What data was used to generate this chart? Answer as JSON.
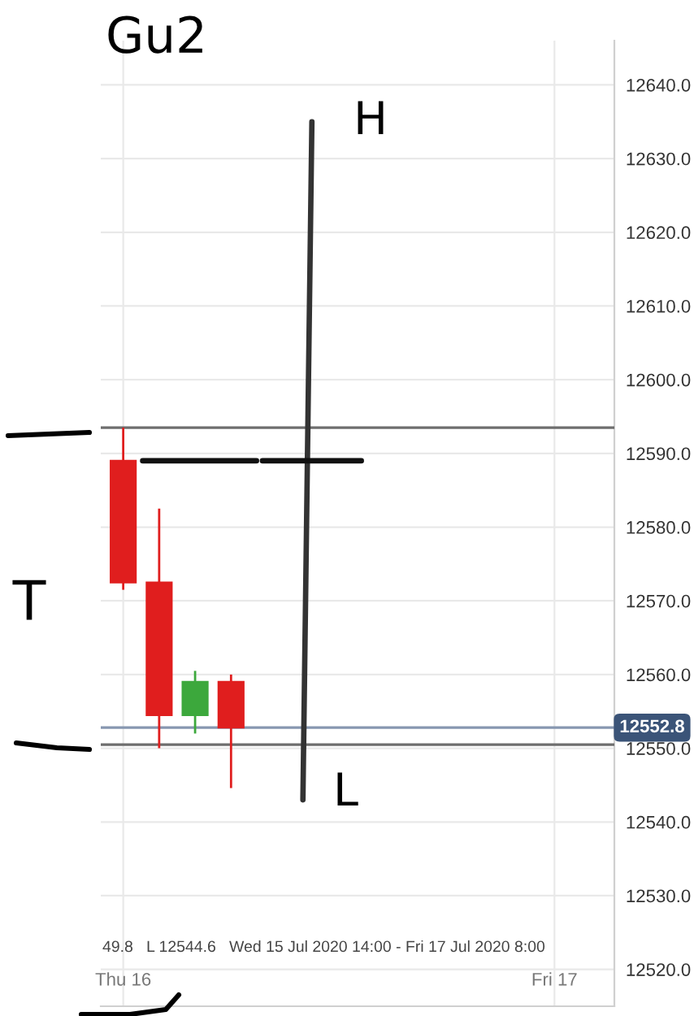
{
  "chart_data": {
    "type": "candlestick",
    "title": "Gu2",
    "x": [
      "2020-07-16T00:00",
      "2020-07-16T02:00",
      "2020-07-16T04:00",
      "2020-07-16T06:00"
    ],
    "ohlc": [
      [
        12589.0,
        12593.5,
        12571.5,
        12572.5
      ],
      [
        12572.5,
        12582.5,
        12550.0,
        12554.5
      ],
      [
        12554.5,
        12560.5,
        12552.0,
        12559.0
      ],
      [
        12559.0,
        12560.0,
        12544.6,
        12552.8
      ]
    ],
    "colors": [
      "#e01e1e",
      "#e01e1e",
      "#3ca83c",
      "#e01e1e"
    ],
    "series": [
      {
        "type": "line",
        "x": [
          "2020-07-16T10:30",
          "2020-07-16T10:00"
        ],
        "values": [
          12635,
          12543
        ],
        "color": "#333333"
      },
      {
        "type": "line",
        "x": [
          "2020-07-16T01:05",
          "2020-07-16T07:25"
        ],
        "values": [
          12589,
          12589
        ],
        "color": "#111111"
      },
      {
        "type": "line",
        "x": [
          "2020-07-16T07:45",
          "2020-07-16T13:15"
        ],
        "values": [
          12589,
          12589
        ],
        "color": "#111111"
      }
    ],
    "xlim": [
      "2020-07-15T22:45",
      "2020-07-17T03:20"
    ],
    "xticks": [
      {
        "value": "2020-07-16",
        "label": "Thu 16"
      },
      {
        "value": "2020-07-17",
        "label": "Fri 17"
      }
    ],
    "ylim": [
      12515,
      12646
    ],
    "yticks": [
      {
        "value": 12520,
        "label": "12520.0"
      },
      {
        "value": 12530,
        "label": "12530.0"
      },
      {
        "value": 12540,
        "label": "12540.0"
      },
      {
        "value": 12550,
        "label": "12550.0"
      },
      {
        "value": 12560,
        "label": "12560.0"
      },
      {
        "value": 12570,
        "label": "12570.0"
      },
      {
        "value": 12580,
        "label": "12580.0"
      },
      {
        "value": 12590,
        "label": "12590.0"
      },
      {
        "value": 12600,
        "label": "12600.0"
      },
      {
        "value": 12610,
        "label": "12610.0"
      },
      {
        "value": 12620,
        "label": "12620.0"
      },
      {
        "value": 12630,
        "label": "12630.0"
      },
      {
        "value": 12640,
        "label": "12640.0"
      }
    ],
    "grid": true,
    "ref_lines": [
      {
        "axis": "y",
        "value": 12593.5,
        "color": "#6e6e6e"
      },
      {
        "axis": "y",
        "value": 12550.5,
        "color": "#6e6e6e"
      },
      {
        "axis": "y",
        "value": 12552.8,
        "label": "12552.8",
        "color": "#8797b0"
      }
    ],
    "annotations": [
      "T",
      {
        "text": "H",
        "x": "2020-07-16T10:30",
        "y": 12635
      },
      {
        "text": "L",
        "x": "2020-07-16T10:00",
        "y": 12543
      },
      "49.8   L 12544.6   Wed 15 Jul 2020 14:00 - Fri 17 Jul 2020 8:00"
    ]
  }
}
